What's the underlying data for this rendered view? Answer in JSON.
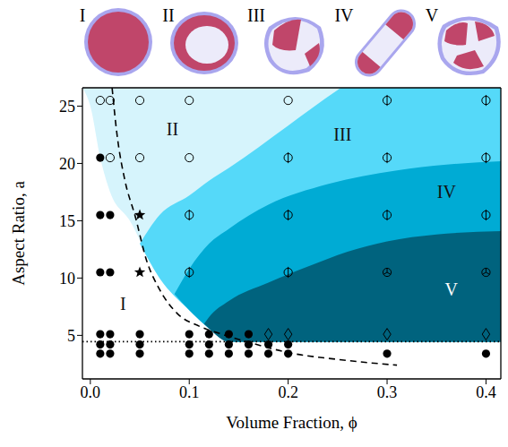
{
  "chart_data": {
    "type": "scatter",
    "x_label": "Volume Fraction, ϕ",
    "y_label": "Aspect Ratio, a",
    "xlim": [
      -0.008,
      0.415
    ],
    "ylim": [
      1.2,
      26.6
    ],
    "xticks": [
      {
        "value": 0,
        "label": "0.0"
      },
      0.1,
      0.2,
      0.3,
      0.4
    ],
    "yticks": [
      5,
      10,
      15,
      20,
      25
    ],
    "regions": [
      {
        "label": "I"
      },
      {
        "label": "II",
        "color": "#d6f4fc",
        "x": [
          -0.008,
          0.0,
          0.01,
          0.02,
          0.04,
          0.066,
          0.1,
          0.12,
          0.14,
          0.415
        ],
        "lower": [
          26.6,
          25,
          20.5,
          17.5,
          15,
          10.5,
          7.2,
          5.6,
          4.45,
          4.45
        ],
        "upper": [
          26.6,
          26.6,
          26.6,
          26.6,
          26.6,
          26.6,
          26.6,
          26.6,
          26.6,
          26.6
        ]
      },
      {
        "label": "III",
        "color": "#55d9f9",
        "x": [
          0.05,
          0.07,
          0.1,
          0.12,
          0.14,
          0.2,
          0.25,
          0.27,
          0.415
        ],
        "lower": [
          13,
          10,
          7.2,
          5.6,
          4.45,
          4.45,
          4.45,
          4.45,
          4.45
        ],
        "upper": [
          13,
          15.5,
          17.2,
          18.5,
          19.6,
          23.3,
          26.4,
          27.5,
          27.5
        ]
      },
      {
        "label": "IV",
        "color": "#00abd4",
        "x": [
          0.085,
          0.1,
          0.12,
          0.14,
          0.18,
          0.24,
          0.31,
          0.36,
          0.415
        ],
        "lower": [
          8.6,
          7.2,
          5.6,
          4.45,
          4.45,
          4.45,
          4.45,
          4.45,
          4.45
        ],
        "upper": [
          8.6,
          10.8,
          13,
          14.3,
          16.4,
          18.2,
          19.4,
          19.9,
          20.2
        ]
      },
      {
        "label": "V",
        "color": "#00637e",
        "x": [
          0.115,
          0.12,
          0.14,
          0.18,
          0.22,
          0.26,
          0.3,
          0.35,
          0.415
        ],
        "lower": [
          6.0,
          5.6,
          4.45,
          4.45,
          4.45,
          4.45,
          4.45,
          4.45,
          4.45
        ],
        "upper": [
          6.0,
          6.6,
          8.0,
          9.6,
          11.0,
          12.3,
          13.2,
          13.8,
          14.1
        ]
      }
    ],
    "series": [
      {
        "type": "line",
        "line_style": "dashed",
        "color": "#000000",
        "x": [
          0.022,
          0.027,
          0.035,
          0.045,
          0.057,
          0.07,
          0.088,
          0.11,
          0.133,
          0.16,
          0.2,
          0.25,
          0.31
        ],
        "values": [
          26.6,
          22.5,
          18.5,
          15.5,
          11.5,
          9,
          6.9,
          5.8,
          5.1,
          4.4,
          3.5,
          2.9,
          2.4
        ]
      },
      {
        "type": "line",
        "line_style": "dotted",
        "color": "#000000",
        "x": [
          -0.008,
          0.415
        ],
        "values": [
          4.45,
          4.45
        ]
      },
      {
        "type": "scatter",
        "marker": "circle",
        "color": "#000000",
        "x": [
          0.01,
          0.01,
          0.01,
          0.01,
          0.01,
          0.01,
          0.02,
          0.02,
          0.02,
          0.02,
          0.02,
          0.05,
          0.05,
          0.05,
          0.1,
          0.1,
          0.1,
          0.12,
          0.12,
          0.12,
          0.14,
          0.14,
          0.14,
          0.16,
          0.16,
          0.16,
          0.18,
          0.18,
          0.2,
          0.2,
          0.3,
          0.4
        ],
        "values": [
          3.4,
          4.2,
          5.1,
          10.5,
          15.5,
          20.5,
          3.4,
          4.2,
          5.1,
          10.5,
          15.5,
          3.4,
          4.2,
          5.1,
          3.4,
          4.2,
          5.1,
          3.4,
          4.2,
          5.1,
          3.4,
          4.2,
          5.1,
          3.4,
          4.2,
          5.1,
          3.4,
          4.2,
          3.4,
          4.2,
          3.4,
          3.4
        ]
      },
      {
        "type": "scatter",
        "marker": "open_circle",
        "color": "#000000",
        "x": [
          0.01,
          0.02,
          0.02,
          0.05,
          0.05,
          0.1,
          0.1,
          0.2
        ],
        "values": [
          25.5,
          25.5,
          20.5,
          20.5,
          25.5,
          20.5,
          25.5,
          25.5
        ]
      },
      {
        "type": "scatter",
        "marker": "star",
        "color": "#000000",
        "x": [
          0.05,
          0.05
        ],
        "values": [
          10.5,
          15.5
        ]
      },
      {
        "type": "scatter",
        "marker": "barred_circle",
        "color": "#000000",
        "x": [
          0.1,
          0.1,
          0.2,
          0.2,
          0.2,
          0.3,
          0.3,
          0.3,
          0.4,
          0.4,
          0.4
        ],
        "values": [
          10.5,
          15.5,
          10.5,
          15.5,
          20.5,
          15.5,
          20.5,
          25.5,
          15.5,
          20.5,
          25.5
        ]
      },
      {
        "type": "scatter",
        "marker": "spoked_circle",
        "color": "#000000",
        "x": [
          0.3,
          0.4
        ],
        "values": [
          10.5,
          10.5
        ]
      },
      {
        "type": "scatter",
        "marker": "diamond",
        "color": "#000000",
        "x": [
          0.18,
          0.2,
          0.3,
          0.4
        ],
        "values": [
          5.1,
          5.1,
          5.1,
          5.1
        ]
      }
    ]
  }
}
